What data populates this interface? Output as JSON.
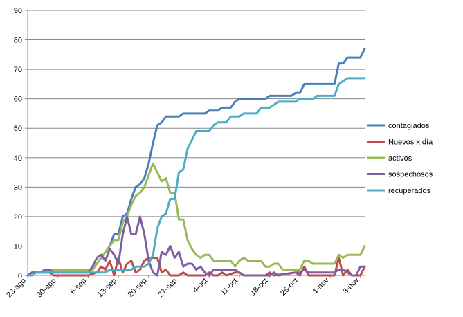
{
  "chart_data": {
    "type": "line",
    "title": "",
    "xlabel": "",
    "ylabel": "",
    "ylim": [
      0,
      90
    ],
    "yticks": [
      0,
      10,
      20,
      30,
      40,
      50,
      60,
      70,
      80,
      90
    ],
    "grid": "horizontal",
    "legend_position": "right",
    "x_start": "23-ago.",
    "x_end": "9-nov.",
    "x_ticks": [
      "23-ago.",
      "30-ago.",
      "6-sep.",
      "13-sep.",
      "20-sep.",
      "27-sep.",
      "4-oct.",
      "11-oct.",
      "18-oct.",
      "25-oct.",
      "1-nov.",
      "8-nov."
    ],
    "series": [
      {
        "name": "contagiados",
        "color": "#4a7ebb",
        "points": [
          [
            "23-ago.",
            0
          ],
          [
            "24-ago.",
            1
          ],
          [
            "27-ago.",
            1
          ],
          [
            "28-ago.",
            2
          ],
          [
            "6-sep.",
            2
          ],
          [
            "7-sep.",
            2
          ],
          [
            "8-sep.",
            4
          ],
          [
            "10-sep.",
            8
          ],
          [
            "11-sep.",
            10
          ],
          [
            "12-sep.",
            14
          ],
          [
            "13-sep.",
            14
          ],
          [
            "14-sep.",
            20
          ],
          [
            "15-sep.",
            21
          ],
          [
            "16-sep.",
            26
          ],
          [
            "17-sep.",
            30
          ],
          [
            "18-sep.",
            31
          ],
          [
            "19-sep.",
            33
          ],
          [
            "20-sep.",
            38
          ],
          [
            "21-sep.",
            45
          ],
          [
            "22-sep.",
            51
          ],
          [
            "23-sep.",
            52
          ],
          [
            "24-sep.",
            54
          ],
          [
            "27-sep.",
            54
          ],
          [
            "28-sep.",
            55
          ],
          [
            "3-oct.",
            55
          ],
          [
            "4-oct.",
            56
          ],
          [
            "6-oct.",
            56
          ],
          [
            "7-oct.",
            57
          ],
          [
            "9-oct.",
            57
          ],
          [
            "10-oct.",
            59
          ],
          [
            "11-oct.",
            60
          ],
          [
            "17-oct.",
            60
          ],
          [
            "18-oct.",
            61
          ],
          [
            "23-oct.",
            61
          ],
          [
            "24-oct.",
            62
          ],
          [
            "25-oct.",
            62
          ],
          [
            "26-oct.",
            65
          ],
          [
            "2-nov.",
            65
          ],
          [
            "3-nov.",
            72
          ],
          [
            "4-nov.",
            72
          ],
          [
            "5-nov.",
            74
          ],
          [
            "8-nov.",
            74
          ],
          [
            "9-nov.",
            77
          ]
        ]
      },
      {
        "name": "Nuevos x día",
        "color": "#be4b48",
        "points": [
          [
            "23-ago.",
            0
          ],
          [
            "24-ago.",
            1
          ],
          [
            "26-ago.",
            1
          ],
          [
            "27-ago.",
            1
          ],
          [
            "28-ago.",
            1
          ],
          [
            "29-ago.",
            0
          ],
          [
            "6-sep.",
            0
          ],
          [
            "8-sep.",
            1
          ],
          [
            "9-sep.",
            3
          ],
          [
            "10-sep.",
            2
          ],
          [
            "11-sep.",
            5
          ],
          [
            "12-sep.",
            0
          ],
          [
            "13-sep.",
            6
          ],
          [
            "14-sep.",
            1
          ],
          [
            "15-sep.",
            4
          ],
          [
            "16-sep.",
            5
          ],
          [
            "17-sep.",
            1
          ],
          [
            "18-sep.",
            2
          ],
          [
            "19-sep.",
            5
          ],
          [
            "20-sep.",
            6
          ],
          [
            "21-sep.",
            6
          ],
          [
            "22-sep.",
            6
          ],
          [
            "23-sep.",
            1
          ],
          [
            "24-sep.",
            2
          ],
          [
            "25-sep.",
            0
          ],
          [
            "27-sep.",
            0
          ],
          [
            "28-sep.",
            1
          ],
          [
            "29-sep.",
            0
          ],
          [
            "3-oct.",
            0
          ],
          [
            "4-oct.",
            1
          ],
          [
            "5-oct.",
            0
          ],
          [
            "6-oct.",
            0
          ],
          [
            "7-oct.",
            1
          ],
          [
            "8-oct.",
            0
          ],
          [
            "10-oct.",
            1
          ],
          [
            "11-oct.",
            1
          ],
          [
            "12-oct.",
            0
          ],
          [
            "17-oct.",
            0
          ],
          [
            "18-oct.",
            1
          ],
          [
            "19-oct.",
            0
          ],
          [
            "24-oct.",
            1
          ],
          [
            "25-oct.",
            0
          ],
          [
            "26-oct.",
            3
          ],
          [
            "27-oct.",
            0
          ],
          [
            "2-nov.",
            0
          ],
          [
            "3-nov.",
            6
          ],
          [
            "4-nov.",
            0
          ],
          [
            "5-nov.",
            2
          ],
          [
            "6-nov.",
            0
          ],
          [
            "8-nov.",
            0
          ],
          [
            "9-nov.",
            3
          ]
        ]
      },
      {
        "name": "activos",
        "color": "#98b954",
        "points": [
          [
            "23-ago.",
            0
          ],
          [
            "24-ago.",
            1
          ],
          [
            "27-ago.",
            1
          ],
          [
            "28-ago.",
            2
          ],
          [
            "6-sep.",
            2
          ],
          [
            "7-sep.",
            2
          ],
          [
            "8-sep.",
            4
          ],
          [
            "10-sep.",
            8
          ],
          [
            "11-sep.",
            10
          ],
          [
            "12-sep.",
            12
          ],
          [
            "13-sep.",
            12
          ],
          [
            "14-sep.",
            18
          ],
          [
            "15-sep.",
            20
          ],
          [
            "16-sep.",
            24
          ],
          [
            "17-sep.",
            27
          ],
          [
            "18-sep.",
            28
          ],
          [
            "19-sep.",
            30
          ],
          [
            "20-sep.",
            34
          ],
          [
            "21-sep.",
            38
          ],
          [
            "22-sep.",
            35
          ],
          [
            "23-sep.",
            32
          ],
          [
            "24-sep.",
            33
          ],
          [
            "25-sep.",
            28
          ],
          [
            "26-sep.",
            28
          ],
          [
            "27-sep.",
            19
          ],
          [
            "28-sep.",
            19
          ],
          [
            "29-sep.",
            12
          ],
          [
            "30-sep.",
            9
          ],
          [
            "1-oct.",
            7
          ],
          [
            "2-oct.",
            6
          ],
          [
            "3-oct.",
            7
          ],
          [
            "4-oct.",
            7
          ],
          [
            "5-oct.",
            5
          ],
          [
            "9-oct.",
            5
          ],
          [
            "10-oct.",
            3
          ],
          [
            "11-oct.",
            5
          ],
          [
            "12-oct.",
            6
          ],
          [
            "13-oct.",
            5
          ],
          [
            "16-oct.",
            5
          ],
          [
            "17-oct.",
            3
          ],
          [
            "18-oct.",
            3
          ],
          [
            "19-oct.",
            4
          ],
          [
            "20-oct.",
            4
          ],
          [
            "21-oct.",
            2
          ],
          [
            "25-oct.",
            2
          ],
          [
            "26-oct.",
            5
          ],
          [
            "27-oct.",
            5
          ],
          [
            "28-oct.",
            4
          ],
          [
            "2-nov.",
            4
          ],
          [
            "3-nov.",
            7
          ],
          [
            "4-nov.",
            6
          ],
          [
            "5-nov.",
            7
          ],
          [
            "8-nov.",
            7
          ],
          [
            "9-nov.",
            10
          ]
        ]
      },
      {
        "name": "sospechosos",
        "color": "#7d60a0",
        "points": [
          [
            "23-ago.",
            0
          ],
          [
            "24-ago.",
            1
          ],
          [
            "26-ago.",
            1
          ],
          [
            "27-ago.",
            2
          ],
          [
            "28-ago.",
            2
          ],
          [
            "29-ago.",
            1
          ],
          [
            "6-sep.",
            1
          ],
          [
            "7-sep.",
            3
          ],
          [
            "8-sep.",
            6
          ],
          [
            "9-sep.",
            7
          ],
          [
            "10-sep.",
            5
          ],
          [
            "11-sep.",
            9
          ],
          [
            "12-sep.",
            7
          ],
          [
            "13-sep.",
            4
          ],
          [
            "14-sep.",
            14
          ],
          [
            "15-sep.",
            20
          ],
          [
            "16-sep.",
            14
          ],
          [
            "17-sep.",
            14
          ],
          [
            "18-sep.",
            20
          ],
          [
            "19-sep.",
            14
          ],
          [
            "20-sep.",
            5
          ],
          [
            "21-sep.",
            1
          ],
          [
            "22-sep.",
            0
          ],
          [
            "23-sep.",
            8
          ],
          [
            "24-sep.",
            7
          ],
          [
            "25-sep.",
            10
          ],
          [
            "26-sep.",
            6
          ],
          [
            "27-sep.",
            8
          ],
          [
            "28-sep.",
            3
          ],
          [
            "29-sep.",
            4
          ],
          [
            "30-sep.",
            4
          ],
          [
            "1-oct.",
            2
          ],
          [
            "2-oct.",
            3
          ],
          [
            "3-oct.",
            1
          ],
          [
            "4-oct.",
            0
          ],
          [
            "5-oct.",
            2
          ],
          [
            "10-oct.",
            2
          ],
          [
            "11-oct.",
            1
          ],
          [
            "12-oct.",
            0
          ],
          [
            "18-oct.",
            0
          ],
          [
            "19-oct.",
            1
          ],
          [
            "20-oct.",
            0
          ],
          [
            "24-oct.",
            1
          ],
          [
            "25-oct.",
            1
          ],
          [
            "26-oct.",
            2
          ],
          [
            "27-oct.",
            1
          ],
          [
            "2-nov.",
            1
          ],
          [
            "3-nov.",
            2
          ],
          [
            "4-nov.",
            2
          ],
          [
            "5-nov.",
            1
          ],
          [
            "6-nov.",
            0
          ],
          [
            "7-nov.",
            0
          ],
          [
            "8-nov.",
            3
          ],
          [
            "9-nov.",
            3
          ]
        ]
      },
      {
        "name": "recuperados",
        "color": "#4bacc6",
        "points": [
          [
            "23-ago.",
            0
          ],
          [
            "24-ago.",
            0
          ],
          [
            "25-ago.",
            1
          ],
          [
            "10-sep.",
            1
          ],
          [
            "11-sep.",
            2
          ],
          [
            "16-sep.",
            2
          ],
          [
            "17-sep.",
            3
          ],
          [
            "19-sep.",
            3
          ],
          [
            "20-sep.",
            4
          ],
          [
            "21-sep.",
            7
          ],
          [
            "22-sep.",
            16
          ],
          [
            "23-sep.",
            20
          ],
          [
            "24-sep.",
            21
          ],
          [
            "25-sep.",
            26
          ],
          [
            "26-sep.",
            26
          ],
          [
            "27-sep.",
            35
          ],
          [
            "28-sep.",
            36
          ],
          [
            "29-sep.",
            43
          ],
          [
            "30-sep.",
            46
          ],
          [
            "1-oct.",
            49
          ],
          [
            "4-oct.",
            49
          ],
          [
            "5-oct.",
            51
          ],
          [
            "6-oct.",
            52
          ],
          [
            "8-oct.",
            52
          ],
          [
            "9-oct.",
            54
          ],
          [
            "11-oct.",
            54
          ],
          [
            "12-oct.",
            55
          ],
          [
            "15-oct.",
            55
          ],
          [
            "16-oct.",
            57
          ],
          [
            "18-oct.",
            57
          ],
          [
            "19-oct.",
            58
          ],
          [
            "20-oct.",
            59
          ],
          [
            "24-oct.",
            59
          ],
          [
            "25-oct.",
            60
          ],
          [
            "28-oct.",
            60
          ],
          [
            "29-oct.",
            61
          ],
          [
            "2-nov.",
            61
          ],
          [
            "3-nov.",
            65
          ],
          [
            "4-nov.",
            66
          ],
          [
            "5-nov.",
            67
          ],
          [
            "9-nov.",
            67
          ]
        ]
      }
    ]
  }
}
